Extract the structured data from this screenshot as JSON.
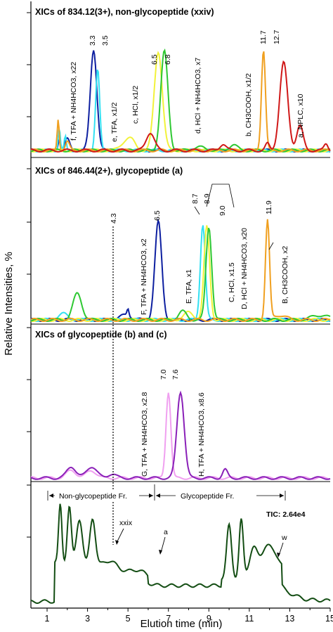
{
  "chart_data": {
    "type": "line",
    "xlabel": "Elution time (min)",
    "ylabel": "Relative Intensities, %",
    "xlim": [
      0.2,
      15
    ],
    "x_ticks": [
      "1",
      "3",
      "5",
      "7",
      "9",
      "11",
      "13",
      "15"
    ],
    "panels": [
      {
        "title": "XICs of 834.12(3+), non-glycopeptide (xxiv)",
        "series": [
          {
            "label": "f,  TFA + NH4HCO3, x22",
            "color": "#0d1fa0",
            "peak_x": 3.3,
            "peak_label": "3.3",
            "amplitude": 0.9
          },
          {
            "label": "e,  TFA, x1/2",
            "color": "#33e0f2",
            "peak_x": 3.5,
            "peak_label": "3.5",
            "amplitude": 0.72
          },
          {
            "label": "c,  HCl, x1/2",
            "color": "#f2f23a",
            "peak_x": 6.5,
            "peak_label": "6.5",
            "amplitude": 0.88
          },
          {
            "label": "d,  HCl + NH4HCO3, x7",
            "color": "#2ec832",
            "peak_x": 6.8,
            "peak_label": "6.8",
            "amplitude": 0.88
          },
          {
            "label": "b,  CH3COOH, x1/2",
            "color": "#f0a020",
            "peak_x": 11.7,
            "peak_label": "11.7",
            "amplitude": 0.9
          },
          {
            "label": "a,  NPLC, x10",
            "color": "#d01818",
            "peak_x": 12.7,
            "peak_label": "12.7",
            "amplitude": 0.78
          }
        ]
      },
      {
        "title": "XICs of 846.44(2+), glycopeptide (a)",
        "series": [
          {
            "label": "F,  TFA + NH4HCO3, x2",
            "color": "#0d1fa0",
            "peak_x": 6.5,
            "peak_label": "6.5",
            "amplitude": 0.82
          },
          {
            "label": "E,  TFA, x1",
            "color": "#33e0f2",
            "peak_x": 8.7,
            "peak_label": "8.7",
            "amplitude": 0.8
          },
          {
            "label": "C,  HCl, x1.5",
            "color": "#f2f23a",
            "peak_x": 8.9,
            "peak_label": "8.9",
            "amplitude": 0.78
          },
          {
            "label": "D,  HCl + NH4HCO3, x20",
            "color": "#2ec832",
            "peak_x": 9.0,
            "peak_label": "9.0",
            "amplitude": 0.78
          },
          {
            "label": "B,  CH3COOH, x2",
            "color": "#f0a020",
            "peak_x": 11.9,
            "peak_label": "11.9",
            "amplitude": 0.83
          }
        ],
        "marker": {
          "x": 4.3,
          "label": "4.3"
        }
      },
      {
        "title": "XICs of glycopeptide (b)  and (c)",
        "series": [
          {
            "label": "G,  TFA + NH4HCO3, x2.8",
            "color": "#f0a0f0",
            "peak_x": 7.0,
            "peak_label": "7.0",
            "amplitude": 0.82
          },
          {
            "label": "H,  TFA + NH4HCO3, x8.6",
            "color": "#8a20b8",
            "peak_x": 7.6,
            "peak_label": "7.6",
            "amplitude": 0.82
          }
        ]
      },
      {
        "title": "",
        "series": [
          {
            "label": "TIC",
            "color": "#134d13"
          }
        ],
        "tic_label": "TIC: 2.64e4",
        "fraction_labels": [
          "Non-glycopeptide Fr.",
          "Glycopeptide Fr."
        ],
        "annotations": [
          "xxix",
          "a",
          "w"
        ]
      }
    ]
  }
}
